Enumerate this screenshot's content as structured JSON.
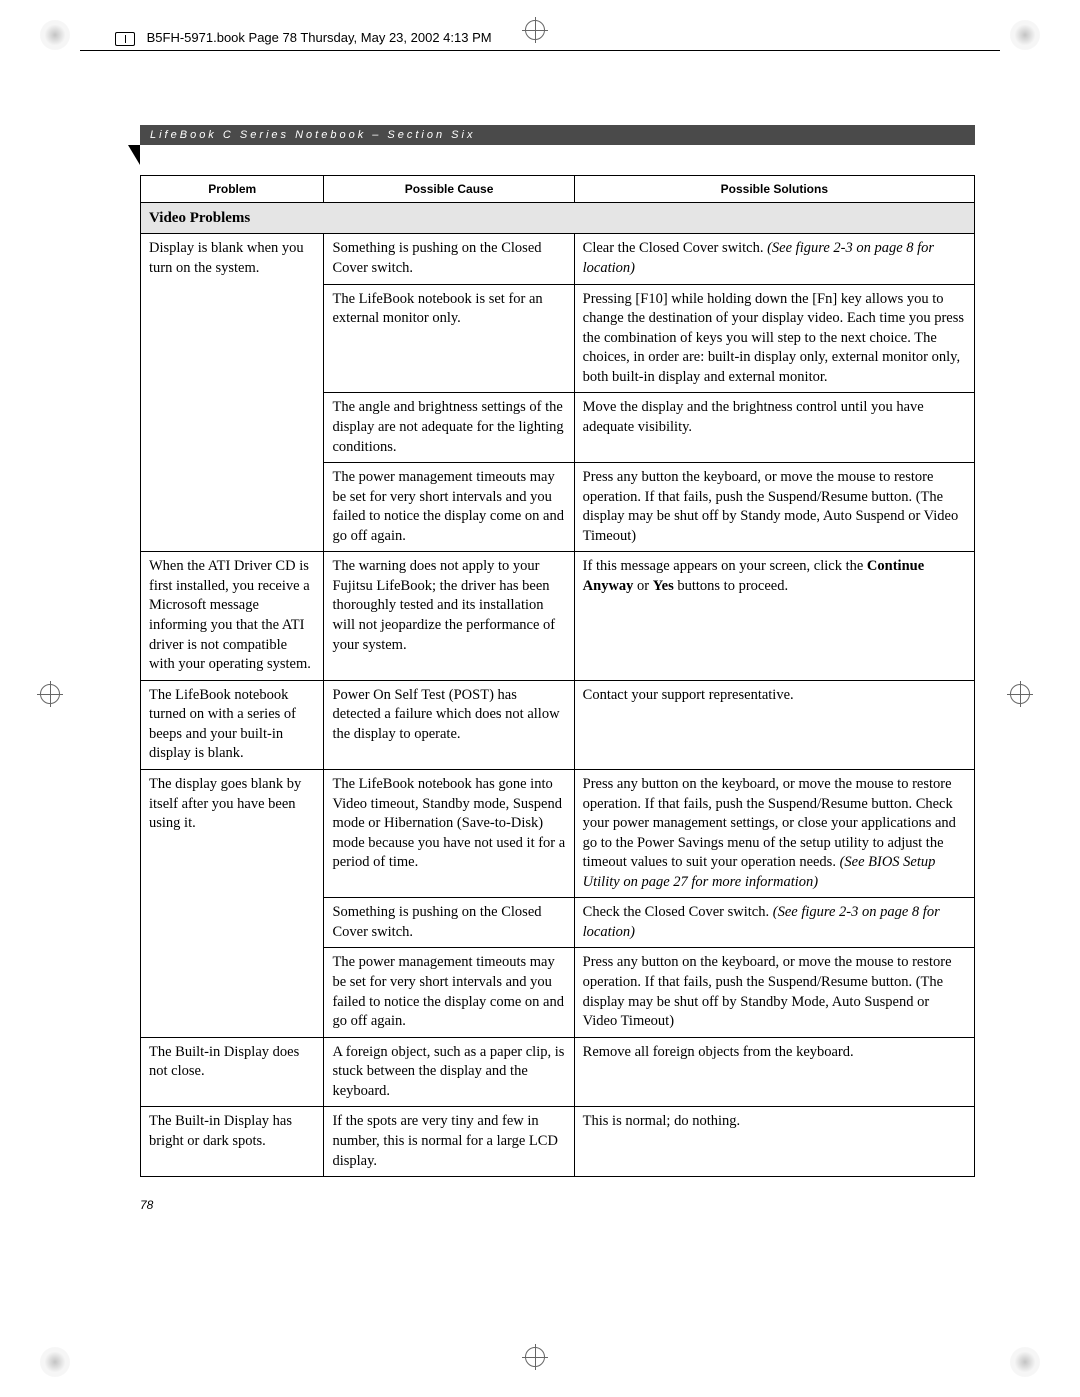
{
  "book_header": "B5FH-5971.book  Page 78  Thursday, May 23, 2002  4:13 PM",
  "section_header": "LifeBook C Series Notebook – Section Six",
  "page_number": "78",
  "table": {
    "headers": {
      "problem": "Problem",
      "cause": "Possible Cause",
      "solution": "Possible Solutions"
    },
    "section_title": "Video Problems",
    "rows": [
      {
        "problem": "Display is blank when you turn on the system.",
        "cause": "Something is pushing on the Closed Cover switch.",
        "solution_prefix": "Clear the Closed Cover switch. ",
        "solution_italic": "(See figure 2-3 on page 8 for location)"
      },
      {
        "problem": "",
        "cause": "The LifeBook notebook is set for an external monitor only.",
        "solution": "Pressing [F10] while holding down the [Fn] key allows you to change the destination of your display video. Each time you press the combination of keys you will step to the next choice. The choices, in order are: built-in display only, external monitor only, both built-in display and external monitor."
      },
      {
        "problem": "",
        "cause": "The angle and brightness settings of the display are not adequate for the lighting conditions.",
        "solution": "Move the display and the brightness control until you have adequate visibility."
      },
      {
        "problem": "",
        "cause": "The power management timeouts may be set for very short intervals and you failed to notice the display come on and go off again.",
        "solution": "Press any button the keyboard, or move the mouse to restore operation. If that fails, push the Suspend/Resume button. (The display may be shut off by Standy mode, Auto Suspend or Video Timeout)"
      },
      {
        "problem": "When the ATI Driver CD is first installed, you receive a Microsoft message informing you that the ATI driver is not compatible with your operating system.",
        "cause": "The warning does not apply to your Fujitsu LifeBook; the driver has been thoroughly tested and its installation will not jeopardize the performance of your system.",
        "solution_prefix": "If this message appears on your screen, click the ",
        "solution_bold1": "Continue Anyway",
        "solution_mid": " or ",
        "solution_bold2": "Yes",
        "solution_suffix": " buttons to proceed."
      },
      {
        "problem": "The LifeBook notebook turned on with a series of beeps and your built-in display is blank.",
        "cause": "Power On Self Test (POST) has detected a failure which does not allow the display to operate.",
        "solution": "Contact your support representative."
      },
      {
        "problem": "The display goes blank by itself after you have been using it.",
        "cause": "The LifeBook notebook has gone into Video timeout, Standby mode, Suspend mode or Hibernation (Save-to-Disk) mode because you have not used it for a period of time.",
        "solution_prefix": "Press any button on the keyboard, or move the mouse to restore operation. If that fails, push the Suspend/Resume button. Check your power management settings, or close your applications and go to the Power Savings menu of the setup utility to adjust the timeout values to suit your operation needs. ",
        "solution_italic": "(See BIOS Setup Utility on page 27 for more information)"
      },
      {
        "problem": "",
        "cause": "Something is pushing on the Closed Cover switch.",
        "solution_prefix": "Check the Closed Cover switch. ",
        "solution_italic": "(See figure 2-3 on page 8 for location)"
      },
      {
        "problem": "",
        "cause": "The power management timeouts may be set for very short intervals and you failed to notice the display come on and go off again.",
        "solution": "Press any button on the keyboard, or move the mouse to restore operation. If that fails, push the Suspend/Resume button. (The display may be shut off by Standby Mode, Auto Suspend or Video Timeout)"
      },
      {
        "problem": "The Built-in Display does not close.",
        "cause": "A foreign object, such as a paper clip, is stuck between the display and the keyboard.",
        "solution": "Remove all foreign objects from the keyboard."
      },
      {
        "problem": "The Built-in Display has bright or dark spots.",
        "cause": "If the spots are very tiny and few in number, this is normal for a large LCD display.",
        "solution": "This is normal; do nothing."
      }
    ]
  },
  "colors": {
    "header_bg": "#4a4a4a",
    "section_row_bg": "#e5e5e5",
    "border": "#000000"
  }
}
